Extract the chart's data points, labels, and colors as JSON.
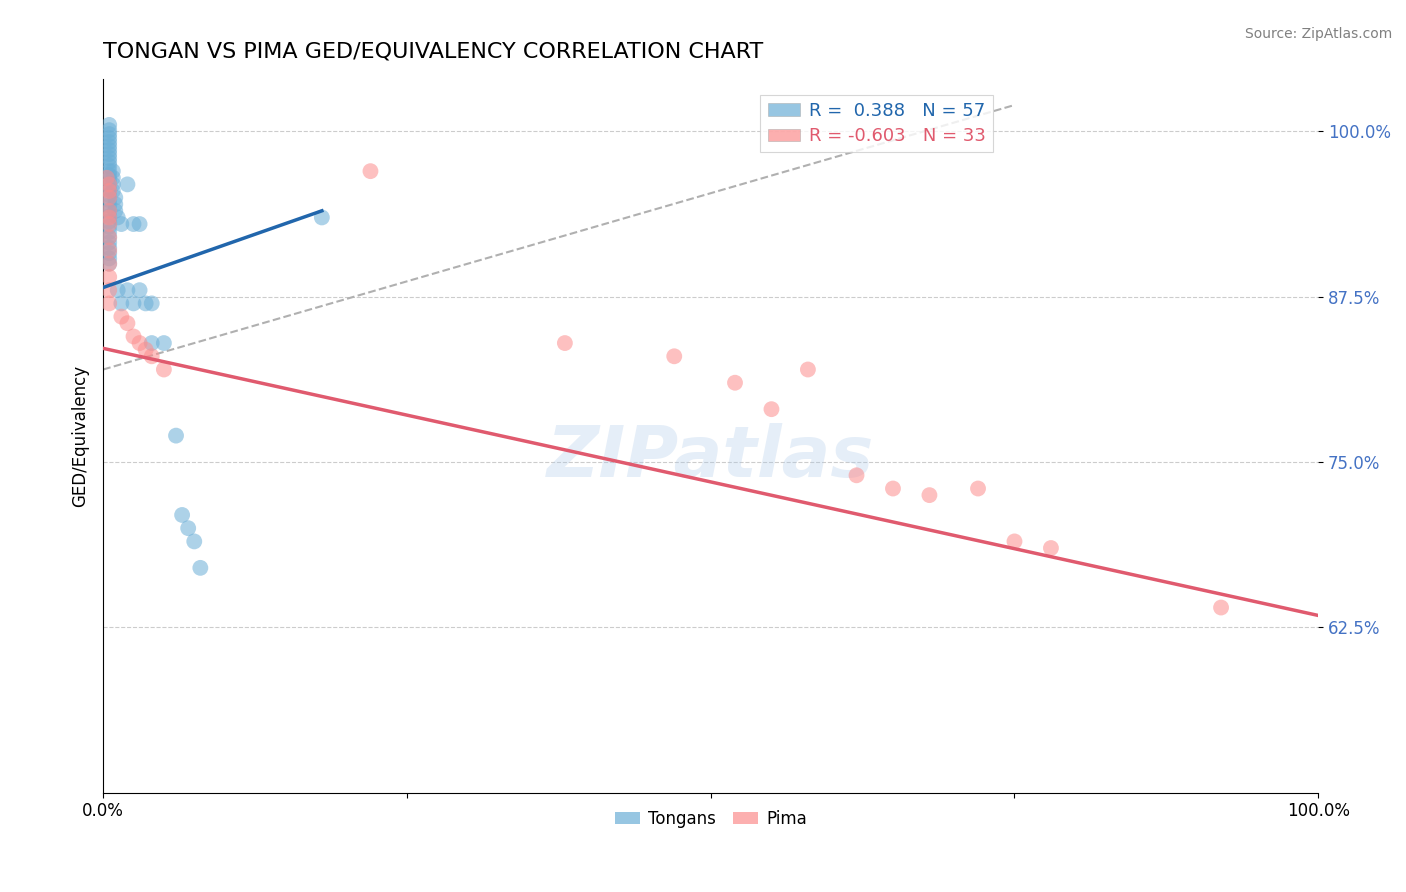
{
  "title": "TONGAN VS PIMA GED/EQUIVALENCY CORRELATION CHART",
  "source": "Source: ZipAtlas.com",
  "ylabel": "GED/Equivalency",
  "xlim": [
    0.0,
    1.0
  ],
  "ylim": [
    0.5,
    1.04
  ],
  "yticks": [
    0.625,
    0.75,
    0.875,
    1.0
  ],
  "ytick_labels": [
    "62.5%",
    "75.0%",
    "87.5%",
    "100.0%"
  ],
  "xticks": [
    0.0,
    0.25,
    0.5,
    0.75,
    1.0
  ],
  "xtick_labels": [
    "0.0%",
    "",
    "",
    "",
    "100.0%"
  ],
  "tongan_R": 0.388,
  "tongan_N": 57,
  "pima_R": -0.603,
  "pima_N": 33,
  "tongan_color": "#6baed6",
  "pima_color": "#fc8d8d",
  "tongan_line_color": "#2166ac",
  "pima_line_color": "#e05a6e",
  "ref_line_color": "#b0b0b0",
  "background_color": "#ffffff",
  "watermark": "ZIPatlas",
  "title_fontsize": 16,
  "axis_label_color": "#4472c4",
  "tongan_x": [
    0.005,
    0.005,
    0.005,
    0.005,
    0.005,
    0.005,
    0.005,
    0.005,
    0.005,
    0.005,
    0.005,
    0.005,
    0.005,
    0.005,
    0.005,
    0.005,
    0.005,
    0.005,
    0.005,
    0.005,
    0.005,
    0.005,
    0.005,
    0.005,
    0.005,
    0.005,
    0.005,
    0.005,
    0.005,
    0.005,
    0.008,
    0.008,
    0.008,
    0.008,
    0.01,
    0.01,
    0.01,
    0.012,
    0.012,
    0.015,
    0.015,
    0.02,
    0.02,
    0.025,
    0.025,
    0.03,
    0.03,
    0.035,
    0.04,
    0.04,
    0.05,
    0.06,
    0.065,
    0.07,
    0.075,
    0.08,
    0.18
  ],
  "tongan_y": [
    1.005,
    1.001,
    0.998,
    0.995,
    0.992,
    0.989,
    0.986,
    0.983,
    0.98,
    0.977,
    0.974,
    0.97,
    0.967,
    0.964,
    0.96,
    0.956,
    0.952,
    0.948,
    0.944,
    0.94,
    0.936,
    0.932,
    0.928,
    0.924,
    0.92,
    0.916,
    0.912,
    0.908,
    0.904,
    0.9,
    0.97,
    0.965,
    0.96,
    0.955,
    0.95,
    0.945,
    0.94,
    0.935,
    0.88,
    0.93,
    0.87,
    0.96,
    0.88,
    0.93,
    0.87,
    0.93,
    0.88,
    0.87,
    0.87,
    0.84,
    0.84,
    0.77,
    0.71,
    0.7,
    0.69,
    0.67,
    0.935
  ],
  "pima_x": [
    0.003,
    0.005,
    0.005,
    0.005,
    0.005,
    0.005,
    0.005,
    0.005,
    0.005,
    0.005,
    0.005,
    0.005,
    0.005,
    0.015,
    0.02,
    0.025,
    0.03,
    0.035,
    0.04,
    0.05,
    0.22,
    0.38,
    0.47,
    0.52,
    0.55,
    0.58,
    0.62,
    0.65,
    0.68,
    0.72,
    0.75,
    0.78,
    0.92
  ],
  "pima_y": [
    0.965,
    0.96,
    0.955,
    0.95,
    0.94,
    0.935,
    0.93,
    0.92,
    0.91,
    0.9,
    0.89,
    0.88,
    0.87,
    0.86,
    0.855,
    0.845,
    0.84,
    0.835,
    0.83,
    0.82,
    0.97,
    0.84,
    0.83,
    0.81,
    0.79,
    0.82,
    0.74,
    0.73,
    0.725,
    0.73,
    0.69,
    0.685,
    0.64
  ],
  "pima_line_x0": 0.0,
  "pima_line_x1": 1.0,
  "pima_line_y0": 0.836,
  "pima_line_y1": 0.634,
  "tongan_line_x0": 0.0,
  "tongan_line_x1": 0.18,
  "tongan_line_y0": 0.882,
  "tongan_line_y1": 0.94,
  "ref_line_x0": 0.0,
  "ref_line_x1": 0.75,
  "ref_line_y0": 0.82,
  "ref_line_y1": 1.02
}
